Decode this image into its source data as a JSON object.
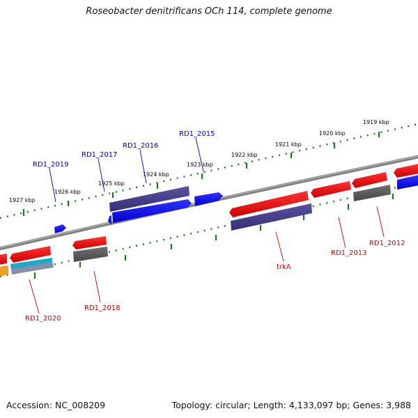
{
  "title": "Roseobacter denitrificans OCh 114, complete genome",
  "footer": {
    "accession": "Accession: NC_008209",
    "summary": "Topology: circular; Length: 4,133,097 bp; Genes: 3,988"
  },
  "colors": {
    "forward_label": "#0000c0",
    "reverse_label": "#cc0000",
    "tick": "#1a7a1a",
    "backbone": "#808080"
  },
  "scale_labels": [
    "1927 kbp",
    "1926 kbp",
    "1925 kbp",
    "1924 kbp",
    "1923 kbp",
    "1922 kbp",
    "1921 kbp",
    "1920 kbp",
    "1919 kbp"
  ],
  "forward_genes": [
    "RD1_2019",
    "RD1_2017",
    "RD1_2016",
    "RD1_2015"
  ],
  "reverse_genes": [
    "RD1_2020",
    "RD1_2018",
    "trkA",
    "RD1_2013",
    "RD1_2012"
  ]
}
